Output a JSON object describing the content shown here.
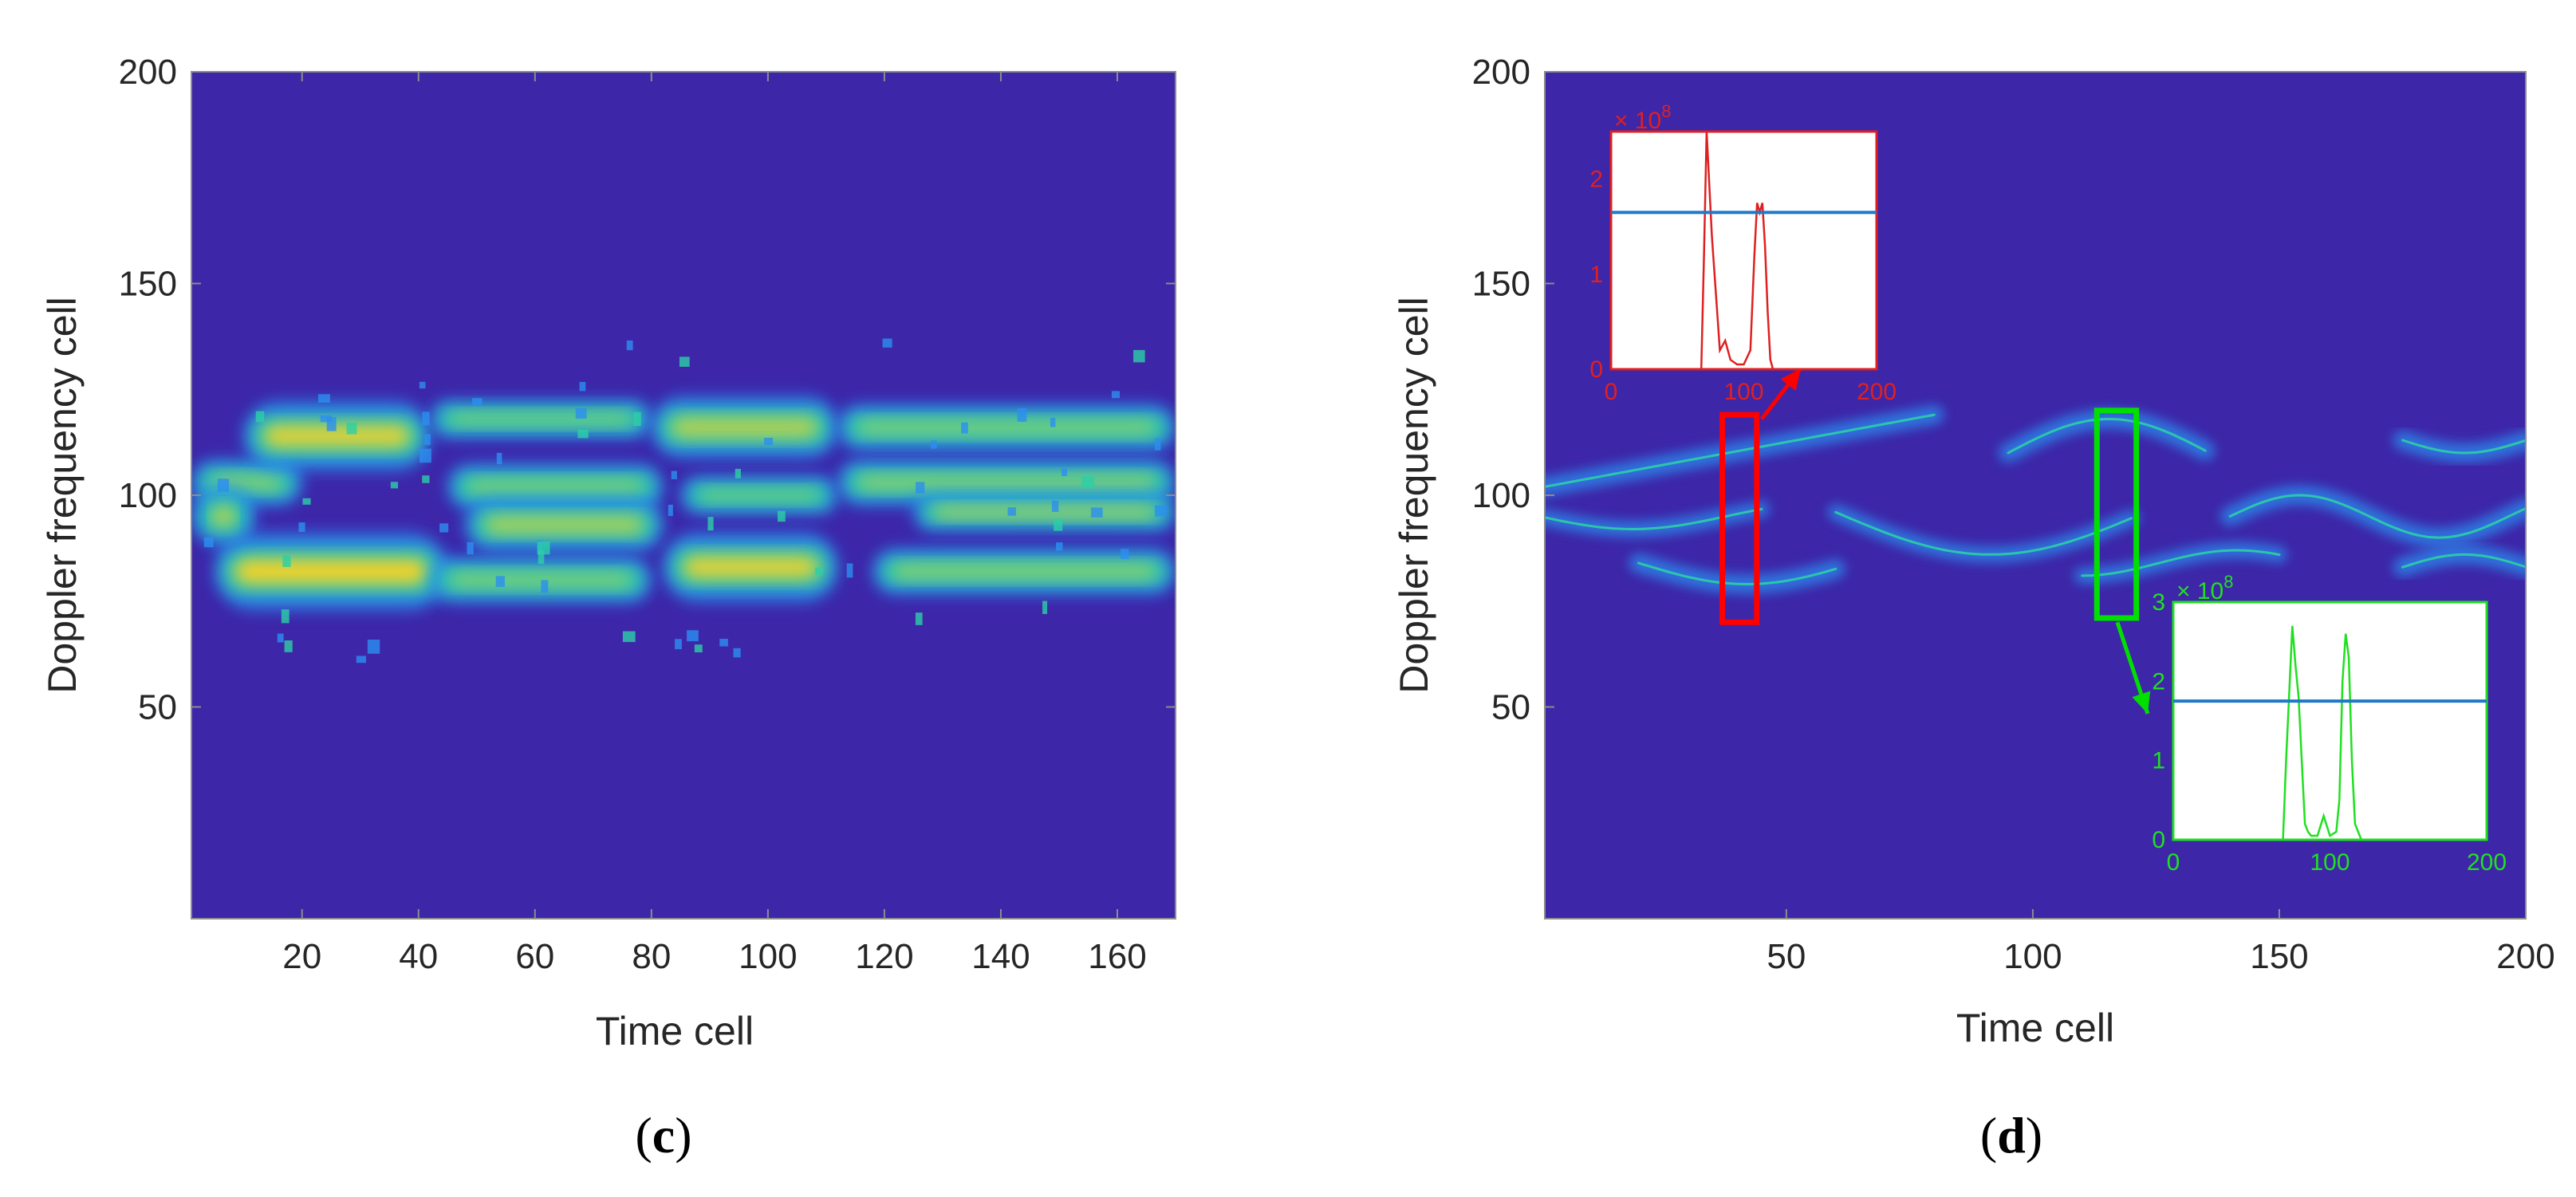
{
  "chart_data": [
    {
      "panel": "c",
      "type": "heatmap",
      "title": "",
      "xlabel": "Time cell",
      "ylabel": "Doppler frequency cell",
      "xlim": [
        1,
        170
      ],
      "ylim": [
        0,
        200
      ],
      "xticks": [
        20,
        40,
        60,
        80,
        100,
        120,
        140,
        160
      ],
      "yticks": [
        50,
        100,
        150,
        200
      ],
      "colors": {
        "background": "#3d26a8",
        "low": "#2c8ef0",
        "mid": "#2ccfa6",
        "high": "#f2d22c"
      },
      "bands": [
        {
          "x": [
            1,
            20
          ],
          "y": 103,
          "height": 6,
          "level": 0.6
        },
        {
          "x": [
            10,
            42
          ],
          "y": 114,
          "height": 9,
          "level": 0.95
        },
        {
          "x": [
            5,
            45
          ],
          "y": 82,
          "height": 10,
          "level": 1.0
        },
        {
          "x": [
            1,
            12
          ],
          "y": 95,
          "height": 8,
          "level": 0.8
        },
        {
          "x": [
            42,
            80
          ],
          "y": 118,
          "height": 5,
          "level": 0.5
        },
        {
          "x": [
            45,
            82
          ],
          "y": 102,
          "height": 6,
          "level": 0.55
        },
        {
          "x": [
            48,
            82
          ],
          "y": 93,
          "height": 7,
          "level": 0.75
        },
        {
          "x": [
            42,
            80
          ],
          "y": 80,
          "height": 6,
          "level": 0.55
        },
        {
          "x": [
            80,
            112
          ],
          "y": 116,
          "height": 8,
          "level": 0.8
        },
        {
          "x": [
            82,
            112
          ],
          "y": 83,
          "height": 9,
          "level": 0.95
        },
        {
          "x": [
            85,
            112
          ],
          "y": 100,
          "height": 5,
          "level": 0.45
        },
        {
          "x": [
            112,
            170
          ],
          "y": 116,
          "height": 6,
          "level": 0.55
        },
        {
          "x": [
            112,
            170
          ],
          "y": 103,
          "height": 6,
          "level": 0.6
        },
        {
          "x": [
            125,
            170
          ],
          "y": 96,
          "height": 5,
          "level": 0.7
        },
        {
          "x": [
            118,
            170
          ],
          "y": 82,
          "height": 6,
          "level": 0.6
        }
      ]
    },
    {
      "panel": "d",
      "type": "heatmap",
      "title": "",
      "xlabel": "Time cell",
      "ylabel": "Doppler frequency cell",
      "xlim": [
        1,
        200
      ],
      "ylim": [
        0,
        200
      ],
      "xticks": [
        50,
        100,
        150,
        200
      ],
      "yticks": [
        50,
        100,
        150,
        200
      ],
      "colors": {
        "background": "#3d26a8",
        "line": "#2c8ef0",
        "ridge": "#2ccfa6"
      },
      "highlight_boxes": [
        {
          "x": [
            37,
            44
          ],
          "y": [
            70,
            119
          ],
          "color": "#ff0000"
        },
        {
          "x": [
            113,
            121
          ],
          "y": [
            71,
            120
          ],
          "color": "#00e000"
        }
      ],
      "insets": [
        {
          "color": "#e02020",
          "exponent_label": "× 10",
          "exponent": "8",
          "xlim": [
            0,
            200
          ],
          "ylim": [
            0,
            2.5
          ],
          "xticks": [
            "0",
            "100",
            "200"
          ],
          "yticks": [
            "0",
            "1",
            "2"
          ],
          "threshold": 1.65,
          "profile_x": [
            0,
            68,
            70,
            72,
            76,
            82,
            86,
            90,
            95,
            100,
            105,
            108,
            110,
            112,
            114,
            116,
            118,
            120,
            122,
            125,
            200
          ],
          "profile_y": [
            0,
            0,
            1.2,
            2.5,
            1.4,
            0.2,
            0.3,
            0.1,
            0.05,
            0.05,
            0.2,
            1.2,
            1.75,
            1.65,
            1.75,
            1.3,
            0.6,
            0.1,
            0,
            0,
            0
          ]
        },
        {
          "color": "#20e020",
          "exponent_label": "× 10",
          "exponent": "8",
          "xlim": [
            0,
            200
          ],
          "ylim": [
            0,
            3
          ],
          "xticks": [
            "0",
            "100",
            "200"
          ],
          "yticks": [
            "0",
            "1",
            "2",
            "3"
          ],
          "threshold": 1.75,
          "profile_x": [
            0,
            70,
            72,
            76,
            78,
            80,
            82,
            84,
            86,
            88,
            92,
            96,
            100,
            104,
            106,
            108,
            110,
            112,
            114,
            116,
            120,
            200
          ],
          "profile_y": [
            0,
            0,
            1.0,
            2.7,
            2.2,
            1.8,
            1.0,
            0.2,
            0.1,
            0.05,
            0.05,
            0.3,
            0.05,
            0.1,
            0.5,
            2.0,
            2.6,
            2.3,
            1.0,
            0.2,
            0,
            0
          ]
        }
      ]
    }
  ],
  "captions": {
    "c": "c",
    "d": "d"
  }
}
